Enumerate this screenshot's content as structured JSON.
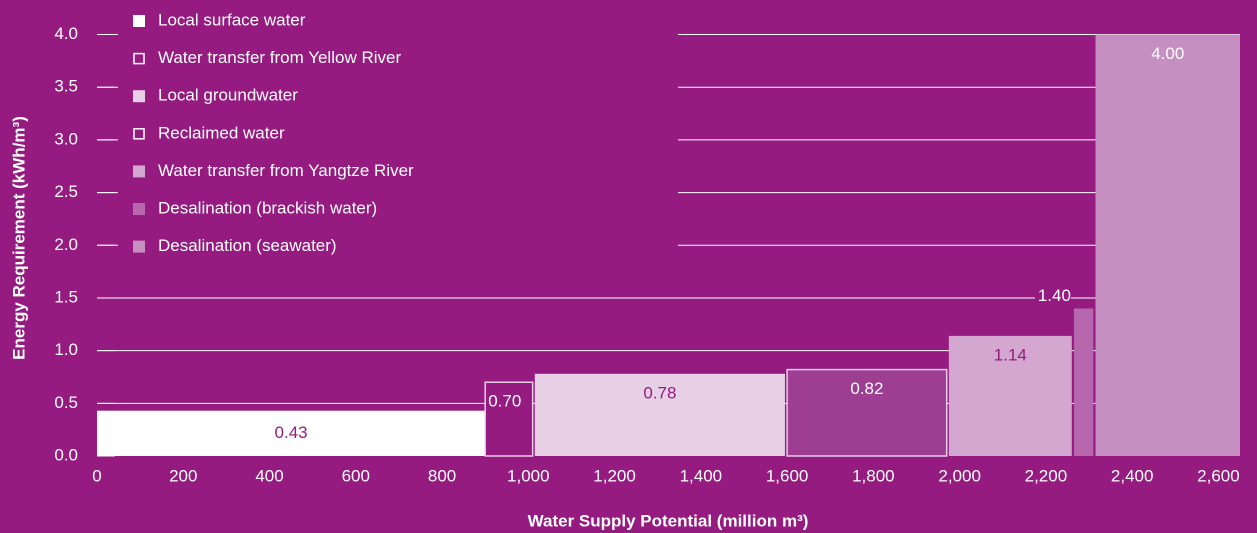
{
  "chart_data": {
    "type": "variable-width-bar",
    "x_label": "Water Supply Potential (million m³)",
    "y_label": "Energy Requirement (kWh/m³)",
    "xlim": [
      0,
      2650
    ],
    "ylim": [
      0,
      4.1
    ],
    "xticks": [
      0,
      200,
      400,
      600,
      800,
      {
        "value": 1000,
        "label": "1,000"
      },
      {
        "value": 1200,
        "label": "1,200"
      },
      {
        "value": 1400,
        "label": "1,400"
      },
      {
        "value": 1600,
        "label": "1,600"
      },
      {
        "value": 1800,
        "label": "1,800"
      },
      {
        "value": 2000,
        "label": "2,000"
      },
      {
        "value": 2200,
        "label": "2,200"
      },
      {
        "value": 2400,
        "label": "2,400"
      },
      {
        "value": 2600,
        "label": "2,600"
      }
    ],
    "yticks": [
      {
        "value": 0,
        "label": "0.0"
      },
      0.5,
      {
        "value": 1,
        "label": "1.0"
      },
      1.5,
      {
        "value": 2,
        "label": "2.0"
      },
      2.5,
      {
        "value": 3,
        "label": "3.0"
      },
      3.5,
      {
        "value": 4,
        "label": "4.0"
      }
    ],
    "grid": true,
    "series": [
      {
        "name": "Local surface water",
        "color": "#ffffff",
        "outline": false,
        "start": 0,
        "end": 900,
        "values": [
          0.43
        ],
        "value_labels": [
          "0.43"
        ]
      },
      {
        "name": "Water transfer from Yellow River",
        "color": "#951b81",
        "outline": true,
        "start": 900,
        "end": 1010,
        "values": [
          0.7
        ],
        "value_labels": [
          "0.70"
        ]
      },
      {
        "name": "Local groundwater",
        "color": "#e7cfe5",
        "outline": false,
        "start": 1015,
        "end": 1595,
        "values": [
          0.78
        ],
        "value_labels": [
          "0.78"
        ]
      },
      {
        "name": "Reclaimed water",
        "color": "#9e3e92",
        "outline": true,
        "start": 1600,
        "end": 1970,
        "values": [
          0.82
        ],
        "value_labels": [
          "0.82"
        ]
      },
      {
        "name": "Water transfer from Yangtze River",
        "color": "#d4a7d0",
        "outline": false,
        "start": 1975,
        "end": 2260,
        "values": [
          1.14
        ],
        "value_labels": [
          "1.14"
        ]
      },
      {
        "name": "Desalination (brackish water)",
        "color": "#b667ad",
        "outline": false,
        "start": 2265,
        "end": 2310,
        "values": [
          1.4
        ],
        "value_labels": [
          "1.40"
        ]
      },
      {
        "name": "Desalination (seawater)",
        "color": "#c590c1",
        "outline": false,
        "start": 2315,
        "end": 2650,
        "values": [
          4
        ],
        "value_labels": [
          "4.00"
        ]
      }
    ]
  }
}
